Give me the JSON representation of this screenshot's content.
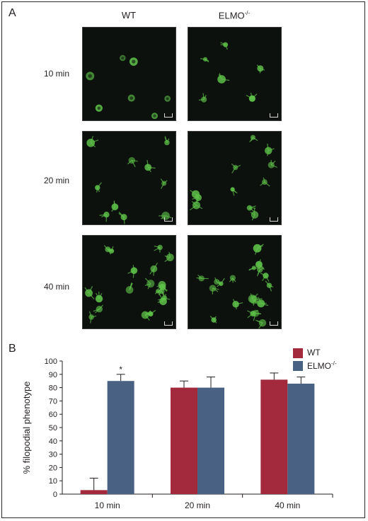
{
  "panel_a": {
    "letter": "A",
    "columns": [
      "WT",
      "ELMO"
    ],
    "column_superscript": "-/-",
    "rows": [
      "10 min",
      "20 min",
      "40 min"
    ]
  },
  "panel_b": {
    "letter": "B"
  },
  "colors": {
    "wt": "#a3293d",
    "elmo": "#496183",
    "cell": "#5fc44a",
    "background": "#0d110d"
  },
  "chart_data": {
    "type": "bar",
    "categories": [
      "10 min",
      "20 min",
      "40 min"
    ],
    "series": [
      {
        "name": "WT",
        "values": [
          3,
          80,
          86
        ],
        "errors": [
          9,
          5,
          5
        ],
        "color": "#a3293d"
      },
      {
        "name": "ELMO-/-",
        "values": [
          85,
          80,
          83
        ],
        "errors": [
          5,
          8,
          5
        ],
        "color": "#496183"
      }
    ],
    "xlabel": "",
    "ylabel": "% filopodial phenotype",
    "ylim": [
      0,
      100
    ],
    "yticks": [
      0,
      10,
      20,
      30,
      40,
      50,
      60,
      70,
      80,
      90,
      100
    ],
    "legend": "top-right",
    "annotations": [
      {
        "category": "10 min",
        "series": "ELMO-/-",
        "text": "*"
      }
    ],
    "grid": false
  }
}
